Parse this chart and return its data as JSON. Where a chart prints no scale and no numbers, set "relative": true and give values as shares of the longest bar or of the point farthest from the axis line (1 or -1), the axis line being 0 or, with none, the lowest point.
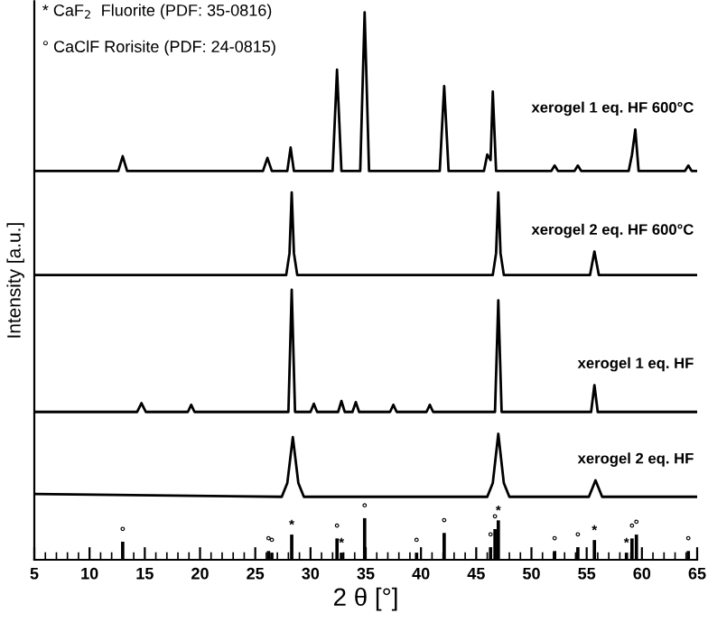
{
  "chart_data": {
    "type": "line",
    "relative": true,
    "xlabel": "2 θ [°]",
    "ylabel": "Intensity [a.u.]",
    "xlim": [
      5,
      65
    ],
    "xticks": [
      5,
      10,
      15,
      20,
      25,
      30,
      35,
      40,
      45,
      50,
      55,
      60,
      65
    ],
    "grid": false,
    "legend": false,
    "marker": "none",
    "line_style": "solid",
    "annotations": [
      "* CaF$_{2}$  Fluorite (PDF: 35-0816)",
      "° CaClF Rorisite (PDF: 24-0815)",
      {
        "text": "°",
        "x": 13.0,
        "y": 0.033
      },
      {
        "text": "°",
        "x": 26.2,
        "y": 0.016
      },
      {
        "text": "°",
        "x": 26.5,
        "y": 0.013
      },
      {
        "text": "*",
        "x": 28.3,
        "y": 0.046
      },
      {
        "text": "°",
        "x": 32.4,
        "y": 0.039
      },
      {
        "text": "*",
        "x": 32.8,
        "y": 0.013
      },
      {
        "text": "°",
        "x": 34.9,
        "y": 0.076
      },
      {
        "text": "°",
        "x": 39.6,
        "y": 0.013
      },
      {
        "text": "°",
        "x": 42.1,
        "y": 0.049
      },
      {
        "text": "°",
        "x": 46.3,
        "y": 0.023
      },
      {
        "text": "°",
        "x": 46.7,
        "y": 0.056
      },
      {
        "text": "*",
        "x": 47.0,
        "y": 0.072
      },
      {
        "text": "°",
        "x": 52.1,
        "y": 0.016
      },
      {
        "text": "°",
        "x": 54.2,
        "y": 0.023
      },
      {
        "text": "*",
        "x": 55.7,
        "y": 0.036
      },
      {
        "text": "*",
        "x": 58.6,
        "y": 0.013
      },
      {
        "text": "°",
        "x": 59.1,
        "y": 0.039
      },
      {
        "text": "°",
        "x": 59.5,
        "y": 0.046
      },
      {
        "text": "°",
        "x": 64.2,
        "y": 0.016
      }
    ],
    "series": [
      {
        "name": "xerogel 1 eq. HF 600°C",
        "color": "#000000",
        "x": [
          5,
          12.6,
          13.0,
          13.4,
          25.7,
          26.1,
          26.5,
          27.9,
          28.2,
          28.5,
          32.0,
          32.4,
          32.8,
          34.5,
          34.9,
          35.3,
          41.7,
          42.1,
          42.5,
          45.7,
          46.0,
          46.3,
          46.5,
          46.8,
          51.8,
          52.1,
          52.4,
          53.9,
          54.2,
          54.5,
          58.8,
          59.1,
          59.4,
          59.7,
          63.9,
          64.2,
          64.5,
          65
        ],
        "values": [
          0.71,
          0.71,
          0.737,
          0.71,
          0.71,
          0.734,
          0.71,
          0.71,
          0.753,
          0.71,
          0.71,
          0.895,
          0.71,
          0.71,
          1.0,
          0.71,
          0.71,
          0.865,
          0.71,
          0.71,
          0.74,
          0.73,
          0.855,
          0.71,
          0.71,
          0.72,
          0.71,
          0.71,
          0.72,
          0.71,
          0.71,
          0.74,
          0.786,
          0.71,
          0.71,
          0.72,
          0.71,
          0.71
        ]
      },
      {
        "name": "xerogel 2 eq. HF 600°C",
        "color": "#000000",
        "x": [
          5,
          27.8,
          28.1,
          28.3,
          28.5,
          28.8,
          46.5,
          46.8,
          47.0,
          47.2,
          47.5,
          55.3,
          55.7,
          56.1,
          65
        ],
        "values": [
          0.52,
          0.52,
          0.56,
          0.671,
          0.56,
          0.52,
          0.52,
          0.56,
          0.671,
          0.56,
          0.52,
          0.52,
          0.563,
          0.52,
          0.52
        ]
      },
      {
        "name": "xerogel 1 eq. HF",
        "color": "#000000",
        "x": [
          5,
          14.3,
          14.7,
          15.1,
          18.9,
          19.2,
          19.5,
          28.0,
          28.3,
          28.6,
          30.0,
          30.3,
          30.6,
          32.5,
          32.8,
          33.1,
          33.8,
          34.1,
          34.4,
          37.2,
          37.5,
          37.8,
          40.5,
          40.8,
          41.1,
          46.7,
          47.0,
          47.3,
          55.4,
          55.7,
          56.0,
          65
        ],
        "values": [
          0.27,
          0.27,
          0.286,
          0.27,
          0.27,
          0.283,
          0.27,
          0.27,
          0.493,
          0.27,
          0.27,
          0.285,
          0.27,
          0.27,
          0.29,
          0.27,
          0.27,
          0.288,
          0.27,
          0.27,
          0.283,
          0.27,
          0.27,
          0.283,
          0.27,
          0.27,
          0.474,
          0.27,
          0.27,
          0.319,
          0.27,
          0.27
        ]
      },
      {
        "name": "xerogel 2 eq. HF",
        "color": "#000000",
        "x": [
          5,
          27.4,
          27.9,
          28.4,
          28.9,
          29.4,
          46.0,
          46.5,
          47.0,
          47.5,
          48.0,
          55.2,
          55.8,
          56.4,
          65
        ],
        "values": [
          0.12,
          0.115,
          0.14,
          0.224,
          0.14,
          0.115,
          0.115,
          0.14,
          0.23,
          0.14,
          0.115,
          0.115,
          0.145,
          0.115,
          0.115
        ]
      },
      {
        "type": "bar",
        "color": "#000000",
        "x": [
          13.0,
          26.2,
          26.5,
          28.3,
          32.4,
          32.8,
          34.9,
          39.6,
          42.1,
          46.3,
          46.7,
          47.0,
          52.1,
          54.2,
          55.7,
          58.6,
          59.1,
          59.5,
          64.2
        ],
        "values": [
          0.033,
          0.016,
          0.013,
          0.046,
          0.039,
          0.013,
          0.076,
          0.013,
          0.049,
          0.023,
          0.056,
          0.072,
          0.016,
          0.023,
          0.036,
          0.013,
          0.039,
          0.046,
          0.016
        ]
      }
    ]
  }
}
